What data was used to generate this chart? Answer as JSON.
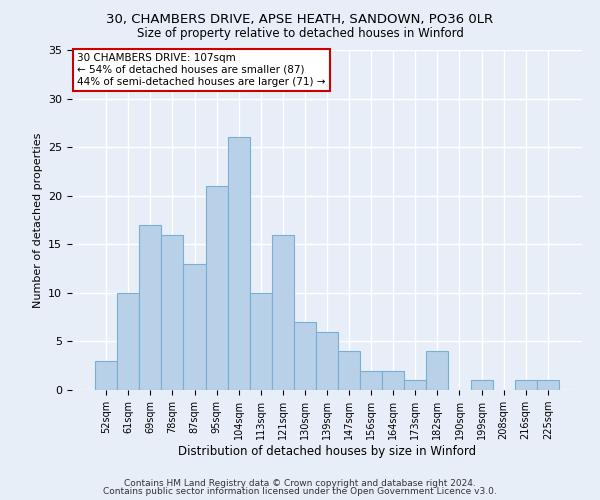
{
  "title1": "30, CHAMBERS DRIVE, APSE HEATH, SANDOWN, PO36 0LR",
  "title2": "Size of property relative to detached houses in Winford",
  "xlabel": "Distribution of detached houses by size in Winford",
  "ylabel": "Number of detached properties",
  "categories": [
    "52sqm",
    "61sqm",
    "69sqm",
    "78sqm",
    "87sqm",
    "95sqm",
    "104sqm",
    "113sqm",
    "121sqm",
    "130sqm",
    "139sqm",
    "147sqm",
    "156sqm",
    "164sqm",
    "173sqm",
    "182sqm",
    "190sqm",
    "199sqm",
    "208sqm",
    "216sqm",
    "225sqm"
  ],
  "values": [
    3,
    10,
    17,
    16,
    13,
    21,
    26,
    10,
    16,
    7,
    6,
    4,
    2,
    2,
    1,
    4,
    0,
    1,
    0,
    1,
    1
  ],
  "bar_color": "#b8d0e8",
  "bar_edge_color": "#7aafd4",
  "annotation_text": "30 CHAMBERS DRIVE: 107sqm\n← 54% of detached houses are smaller (87)\n44% of semi-detached houses are larger (71) →",
  "annotation_box_color": "#ffffff",
  "annotation_box_edge_color": "#cc0000",
  "ylim": [
    0,
    35
  ],
  "yticks": [
    0,
    5,
    10,
    15,
    20,
    25,
    30,
    35
  ],
  "bg_color": "#e8eef8",
  "fig_color": "#e8eef8",
  "grid_color": "#ffffff",
  "footer1": "Contains HM Land Registry data © Crown copyright and database right 2024.",
  "footer2": "Contains public sector information licensed under the Open Government Licence v3.0."
}
